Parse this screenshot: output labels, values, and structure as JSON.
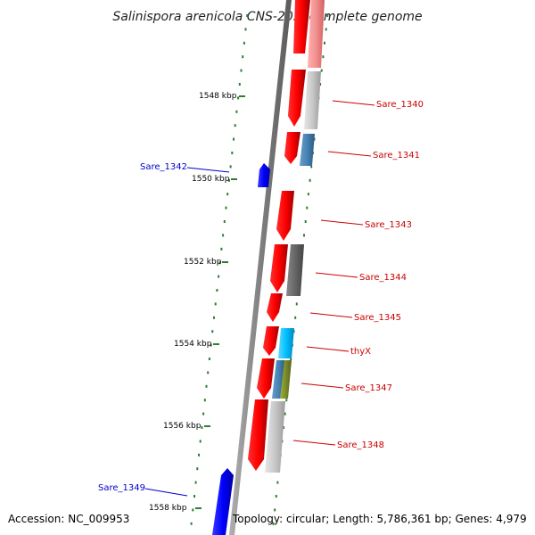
{
  "title": "Salinispora arenicola CNS-205, complete genome",
  "footer": {
    "accession": "Accession: NC_009953",
    "topology": "Topology: circular; Length: 5,786,361 bp; Genes: 4,979"
  },
  "colors": {
    "backbone": "#808080",
    "tick": "#2e7d32",
    "forward_gene": "#ff0000",
    "reverse_gene": "#0000ff",
    "forward_label": "#cc0000",
    "reverse_label": "#0000cc"
  },
  "kbp_ticks": [
    {
      "label": "1548 kbp",
      "kbp": 1548
    },
    {
      "label": "1550 kbp",
      "kbp": 1550
    },
    {
      "label": "1552 kbp",
      "kbp": 1552
    },
    {
      "label": "1554 kbp",
      "kbp": 1554
    },
    {
      "label": "1556 kbp",
      "kbp": 1556
    },
    {
      "label": "1558 kbp",
      "kbp": 1558
    }
  ],
  "gene_labels": [
    {
      "name": "Sare_1340",
      "strand": "forward"
    },
    {
      "name": "Sare_1341",
      "strand": "forward"
    },
    {
      "name": "Sare_1342",
      "strand": "reverse"
    },
    {
      "name": "Sare_1343",
      "strand": "forward"
    },
    {
      "name": "Sare_1344",
      "strand": "forward"
    },
    {
      "name": "Sare_1345",
      "strand": "forward"
    },
    {
      "name": "thyX",
      "strand": "forward"
    },
    {
      "name": "Sare_1347",
      "strand": "forward"
    },
    {
      "name": "Sare_1348",
      "strand": "forward"
    },
    {
      "name": "Sare_1349",
      "strand": "reverse"
    }
  ]
}
